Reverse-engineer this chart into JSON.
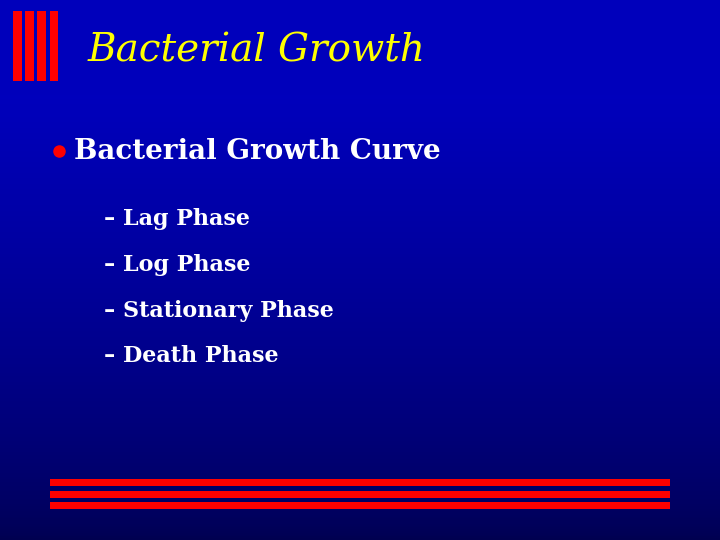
{
  "title": "Bacterial Growth",
  "title_color": "#FFFF00",
  "title_fontsize": 28,
  "title_style": "italic",
  "title_font": "serif",
  "bg_color_center": "#0000CC",
  "bg_color_edge": "#000080",
  "bullet_text": "Bacterial Growth Curve",
  "bullet_color": "#FFFFFF",
  "bullet_dot_color": "#FF0000",
  "bullet_fontsize": 20,
  "sub_items": [
    "– Lag Phase",
    "– Log Phase",
    "– Stationary Phase",
    "– Death Phase"
  ],
  "sub_color": "#FFFFFF",
  "sub_fontsize": 16,
  "red_square_color": "#FF0000",
  "footer_line_color": "#FF0000",
  "header_bg": "#0000BB"
}
